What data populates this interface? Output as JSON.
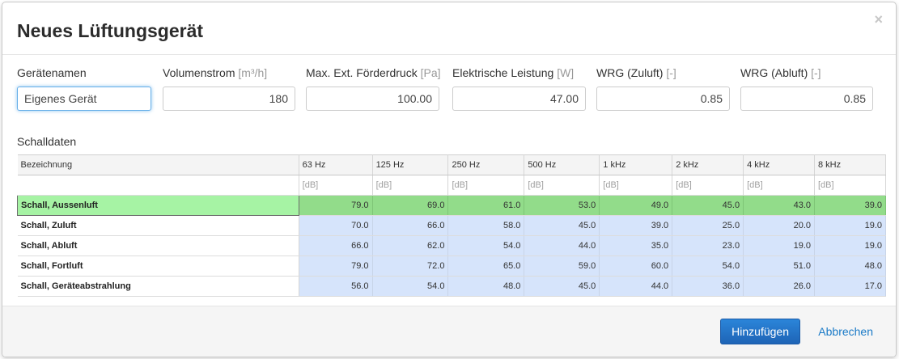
{
  "dialog": {
    "title": "Neues Lüftungsgerät",
    "close_symbol": "×"
  },
  "fields": [
    {
      "label": "Gerätenamen",
      "unit": "",
      "value": "Eigenes Gerät"
    },
    {
      "label": "Volumenstrom",
      "unit": "[m³/h]",
      "value": "180"
    },
    {
      "label": "Max. Ext. Förderdruck",
      "unit": "[Pa]",
      "value": "100.00"
    },
    {
      "label": "Elektrische Leistung",
      "unit": "[W]",
      "value": "47.00"
    },
    {
      "label": "WRG (Zuluft)",
      "unit": "[-]",
      "value": "0.85"
    },
    {
      "label": "WRG (Abluft)",
      "unit": "[-]",
      "value": "0.85"
    }
  ],
  "schalldaten": {
    "title": "Schalldaten",
    "headers": [
      "Bezeichnung",
      "63 Hz",
      "125 Hz",
      "250 Hz",
      "500 Hz",
      "1 kHz",
      "2 kHz",
      "4 kHz",
      "8 kHz"
    ],
    "units": [
      "",
      "[dB]",
      "[dB]",
      "[dB]",
      "[dB]",
      "[dB]",
      "[dB]",
      "[dB]",
      "[dB]"
    ],
    "rows": [
      {
        "name": "Schall, Aussenluft",
        "values": [
          "79.0",
          "69.0",
          "61.0",
          "53.0",
          "49.0",
          "45.0",
          "43.0",
          "39.0"
        ]
      },
      {
        "name": "Schall, Zuluft",
        "values": [
          "70.0",
          "66.0",
          "58.0",
          "45.0",
          "39.0",
          "25.0",
          "20.0",
          "19.0"
        ]
      },
      {
        "name": "Schall, Abluft",
        "values": [
          "66.0",
          "62.0",
          "54.0",
          "44.0",
          "35.0",
          "23.0",
          "19.0",
          "19.0"
        ]
      },
      {
        "name": "Schall, Fortluft",
        "values": [
          "79.0",
          "72.0",
          "65.0",
          "59.0",
          "60.0",
          "54.0",
          "51.0",
          "48.0"
        ]
      },
      {
        "name": "Schall, Geräteabstrahlung",
        "values": [
          "56.0",
          "54.0",
          "48.0",
          "45.0",
          "44.0",
          "36.0",
          "26.0",
          "17.0"
        ]
      }
    ]
  },
  "footer": {
    "add_label": "Hinzufügen",
    "cancel_label": "Abbrechen"
  },
  "colors": {
    "primary": "#1e64b6",
    "highlight_row": "#92dc8a",
    "value_cell": "#d6e4fb"
  }
}
